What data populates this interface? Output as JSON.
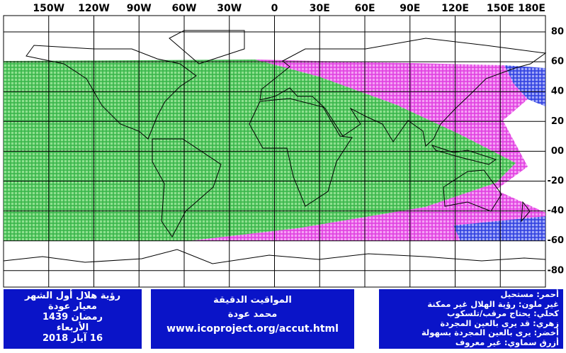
{
  "map": {
    "lon_labels": [
      "150W",
      "120W",
      "90W",
      "60W",
      "30W",
      "0",
      "30E",
      "60E",
      "90E",
      "120E",
      "150E",
      "180E"
    ],
    "lat_labels": [
      "80",
      "60",
      "40",
      "20",
      "00",
      "-20",
      "-40",
      "-60",
      "-80"
    ]
  },
  "panels": {
    "left": [
      "رؤية هلال أول الشهر",
      "معيار عودة",
      "رمضان 1439",
      "الأربعاء",
      "16 آيار 2018"
    ],
    "center": [
      "المواقيت الدقيقة",
      "محمد عودة",
      "www.icoproject.org/accut.html"
    ],
    "right": [
      "أحمر: مستحيل",
      "غير ملون: رؤية الهلال غير ممكنة",
      "كحلي: يحتاج مرقب/تلسكوب",
      "زهري: قد يرى بالعين المجردة",
      "أخضر: يرى بالعين المجردة بسهولة",
      "أزرق سماوي: غير معروف"
    ]
  }
}
